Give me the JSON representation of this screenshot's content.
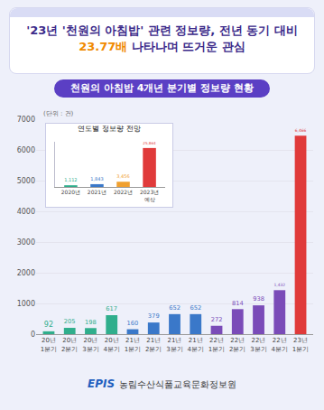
{
  "chart_data": [
    {
      "type": "bar",
      "title": "'23년 '천원의 아침밥' 관련 정보량, 전년 동기 대비 23.77배 나타나며 뜨거운 관심",
      "subtitle": "천원의 아침밥 4개년 분기별 정보량 현황",
      "annotations": [
        "(단위 : 건)"
      ],
      "categories": [
        "20년 1분기",
        "20년 2분기",
        "20년 3분기",
        "20년 4분기",
        "21년 1분기",
        "21년 2분기",
        "21년 3분기",
        "21년 4분기",
        "22년 1분기",
        "22년 2분기",
        "22년 3분기",
        "22년 4분기",
        "23년 1분기"
      ],
      "values": [
        92,
        205,
        198,
        617,
        160,
        379,
        652,
        652,
        272,
        814,
        938,
        1432,
        6466
      ],
      "value_labels": [
        "92",
        "205",
        "198",
        "617",
        "160",
        "379",
        "652",
        "652",
        "272",
        "814",
        "938",
        "1,432",
        "6,466"
      ],
      "colors": [
        "#2fae8c",
        "#2fae8c",
        "#2fae8c",
        "#2fae8c",
        "#3a78c9",
        "#3a78c9",
        "#3a78c9",
        "#3a78c9",
        "#7a4bb8",
        "#7a4bb8",
        "#7a4bb8",
        "#7a4bb8",
        "#e03a3a"
      ],
      "ylim": [
        0,
        7000
      ],
      "yticks": [
        0,
        1000,
        2000,
        3000,
        4000,
        5000,
        6000,
        7000
      ],
      "grid": true,
      "data_labels": true
    },
    {
      "type": "bar",
      "title": "연도별 정보량 전망",
      "categories": [
        "2020년",
        "2021년",
        "2022년",
        "2023년 예상"
      ],
      "values": [
        1112,
        1843,
        3456,
        25864
      ],
      "value_labels": [
        "1,112",
        "1,843",
        "3,456",
        "25,864"
      ],
      "colors": [
        "#2fae8c",
        "#3a78c9",
        "#f0a030",
        "#e03a3a"
      ],
      "ylim": [
        0,
        30000
      ],
      "tick_labels": "x",
      "data_labels": true
    }
  ],
  "footer": {
    "logo": "EPIS",
    "organization": "농림수산식품교육문화정보원"
  }
}
